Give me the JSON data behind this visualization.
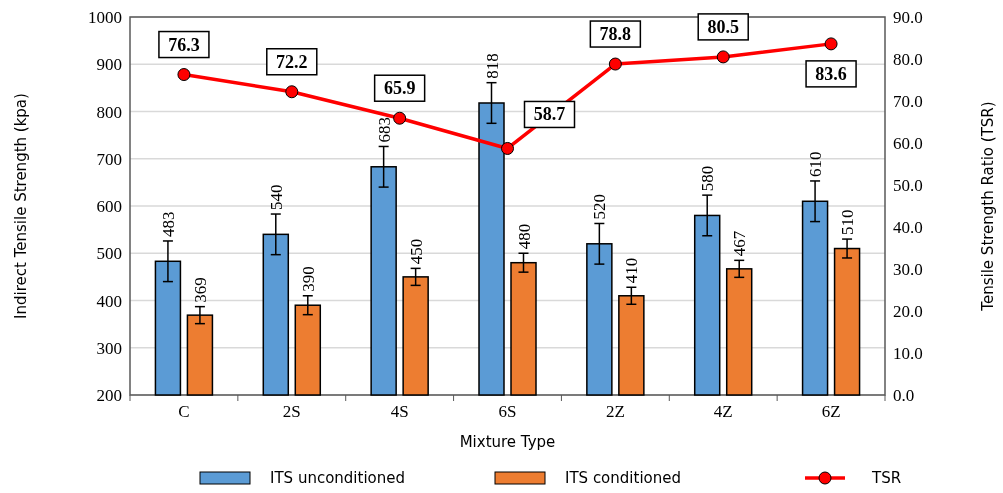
{
  "chart_data": {
    "type": "bar",
    "xlabel": "Mixture Type",
    "ylabel": "Indirect Tensile Strength (kpa)",
    "y2label": "Tensile Strength Ratio (TSR)",
    "categories": [
      "C",
      "2S",
      "4S",
      "6S",
      "2Z",
      "4Z",
      "6Z"
    ],
    "series": [
      {
        "name": "ITS unconditioned",
        "color": "#5b9bd5",
        "values": [
          483,
          540,
          683,
          818,
          520,
          580,
          610
        ],
        "errors": [
          43,
          43,
          43,
          43,
          43,
          43,
          43
        ]
      },
      {
        "name": "ITS conditioned",
        "color": "#ed7d31",
        "values": [
          369,
          390,
          450,
          480,
          410,
          467,
          510
        ],
        "errors": [
          18,
          20,
          18,
          20,
          18,
          18,
          20
        ]
      },
      {
        "name": "TSR",
        "type": "line",
        "axis": "y2",
        "color": "#ff0000",
        "marker": "circle",
        "values": [
          76.3,
          72.2,
          65.9,
          58.7,
          78.8,
          80.5,
          83.6
        ]
      }
    ],
    "ylim": [
      200,
      1000
    ],
    "yticks": [
      200,
      300,
      400,
      500,
      600,
      700,
      800,
      900,
      1000
    ],
    "y2lim": [
      0,
      90
    ],
    "y2ticks": [
      {
        "value": 0,
        "label": "0.0"
      },
      {
        "value": 10,
        "label": "10.0"
      },
      {
        "value": 20,
        "label": "20.0"
      },
      {
        "value": 30,
        "label": "30.0"
      },
      {
        "value": 40,
        "label": "40.0"
      },
      {
        "value": 50,
        "label": "50.0"
      },
      {
        "value": 60,
        "label": "60.0"
      },
      {
        "value": 70,
        "label": "70.0"
      },
      {
        "value": 80,
        "label": "80.0"
      },
      {
        "value": 90,
        "label": "90.0"
      }
    ],
    "grid": "y",
    "legend": "bottom",
    "data_labels": true
  }
}
